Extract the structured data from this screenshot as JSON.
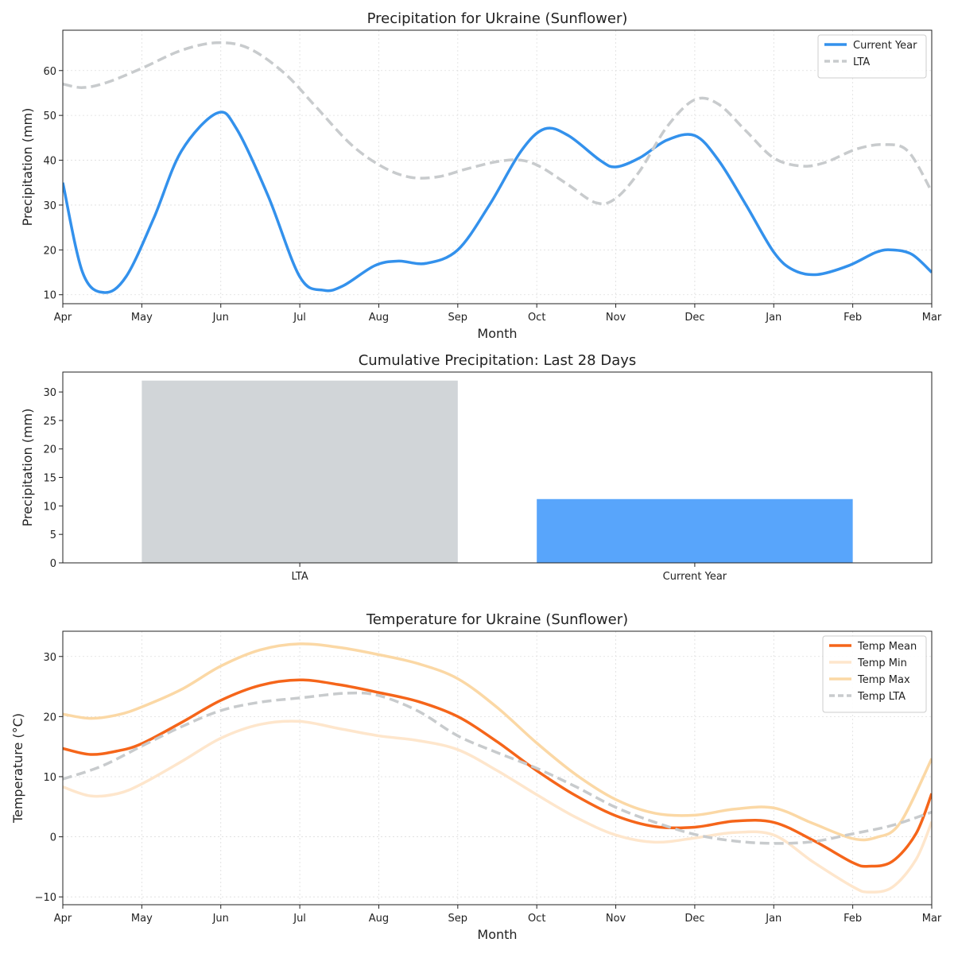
{
  "chart_data": [
    {
      "type": "line",
      "title": "Precipitation for Ukraine (Sunflower)",
      "xlabel": "Month",
      "ylabel": "Precipitation (mm)",
      "x_ticks": [
        "Apr",
        "May",
        "Jun",
        "Jul",
        "Aug",
        "Sep",
        "Oct",
        "Nov",
        "Dec",
        "Jan",
        "Feb",
        "Mar"
      ],
      "xlim": [
        0,
        11
      ],
      "ylim": [
        8,
        69
      ],
      "y_ticks": [
        10,
        20,
        30,
        40,
        50,
        60
      ],
      "grid": true,
      "legend": "top-right",
      "series": [
        {
          "name": "Current Year",
          "color": "#3391ec",
          "dash": false,
          "points": [
            [
              0,
              35
            ],
            [
              0.25,
              15
            ],
            [
              0.52,
              10.5
            ],
            [
              0.8,
              14
            ],
            [
              1.15,
              27
            ],
            [
              1.5,
              42
            ],
            [
              1.95,
              50.5
            ],
            [
              2.2,
              47
            ],
            [
              2.6,
              32
            ],
            [
              3.0,
              14
            ],
            [
              3.3,
              11
            ],
            [
              3.55,
              12
            ],
            [
              3.95,
              16.5
            ],
            [
              4.25,
              17.5
            ],
            [
              4.6,
              17
            ],
            [
              5.0,
              20
            ],
            [
              5.4,
              30
            ],
            [
              5.8,
              42
            ],
            [
              6.1,
              47
            ],
            [
              6.4,
              45.5
            ],
            [
              6.8,
              40
            ],
            [
              7.0,
              38.5
            ],
            [
              7.3,
              40.5
            ],
            [
              7.65,
              44.5
            ],
            [
              8.0,
              45.5
            ],
            [
              8.3,
              40
            ],
            [
              8.65,
              30
            ],
            [
              9.0,
              19.5
            ],
            [
              9.25,
              15.5
            ],
            [
              9.55,
              14.5
            ],
            [
              9.95,
              16.5
            ],
            [
              10.3,
              19.5
            ],
            [
              10.5,
              20
            ],
            [
              10.75,
              19
            ],
            [
              11.0,
              15
            ]
          ]
        },
        {
          "name": "LTA",
          "color": "#c8cbcd",
          "dash": true,
          "points": [
            [
              0,
              57
            ],
            [
              0.25,
              56.2
            ],
            [
              0.55,
              57.3
            ],
            [
              1.0,
              60.5
            ],
            [
              1.5,
              64.5
            ],
            [
              1.95,
              66.2
            ],
            [
              2.35,
              65
            ],
            [
              2.8,
              59.5
            ],
            [
              3.2,
              52
            ],
            [
              3.65,
              43.5
            ],
            [
              4.05,
              38.5
            ],
            [
              4.4,
              36.2
            ],
            [
              4.75,
              36.3
            ],
            [
              5.1,
              38
            ],
            [
              5.5,
              39.7
            ],
            [
              5.8,
              40
            ],
            [
              6.05,
              38.5
            ],
            [
              6.4,
              34.5
            ],
            [
              6.75,
              30.5
            ],
            [
              7.0,
              31.5
            ],
            [
              7.3,
              37.5
            ],
            [
              7.65,
              47.5
            ],
            [
              8.0,
              53.5
            ],
            [
              8.3,
              52.5
            ],
            [
              8.65,
              46.5
            ],
            [
              9.0,
              40.5
            ],
            [
              9.35,
              38.7
            ],
            [
              9.65,
              39.5
            ],
            [
              10.05,
              42.5
            ],
            [
              10.4,
              43.5
            ],
            [
              10.7,
              42
            ],
            [
              11.0,
              33
            ]
          ]
        }
      ]
    },
    {
      "type": "bar",
      "title": "Cumulative Precipitation: Last 28 Days",
      "xlabel": "",
      "ylabel": "Precipitation (mm)",
      "categories": [
        "LTA",
        "Current Year"
      ],
      "values": [
        32,
        11.2
      ],
      "colors": [
        "#d1d5d8",
        "#58a5fb"
      ],
      "ylim": [
        0,
        33.5
      ],
      "y_ticks": [
        0,
        5,
        10,
        15,
        20,
        25,
        30
      ]
    },
    {
      "type": "line",
      "title": "Temperature for Ukraine (Sunflower)",
      "xlabel": "Month",
      "ylabel": "Temperature (°C)",
      "x_ticks": [
        "Apr",
        "May",
        "Jun",
        "Jul",
        "Aug",
        "Sep",
        "Oct",
        "Nov",
        "Dec",
        "Jan",
        "Feb",
        "Mar"
      ],
      "xlim": [
        0,
        11
      ],
      "ylim": [
        -11.3,
        34.2
      ],
      "y_ticks": [
        -10,
        0,
        10,
        20,
        30
      ],
      "grid": true,
      "legend": "top-right",
      "series": [
        {
          "name": "Temp Mean",
          "color": "#f5651a",
          "dash": false,
          "points": [
            [
              0,
              14.7
            ],
            [
              0.35,
              13.7
            ],
            [
              0.7,
              14.3
            ],
            [
              1.0,
              15.5
            ],
            [
              1.5,
              19
            ],
            [
              2.0,
              22.7
            ],
            [
              2.5,
              25.2
            ],
            [
              3.0,
              26.1
            ],
            [
              3.5,
              25.3
            ],
            [
              4.0,
              24
            ],
            [
              4.5,
              22.5
            ],
            [
              5.0,
              20
            ],
            [
              5.5,
              15.8
            ],
            [
              6.0,
              11
            ],
            [
              6.5,
              6.8
            ],
            [
              7.0,
              3.5
            ],
            [
              7.5,
              1.7
            ],
            [
              8.0,
              1.6
            ],
            [
              8.5,
              2.6
            ],
            [
              9.0,
              2.4
            ],
            [
              9.5,
              -0.6
            ],
            [
              10.0,
              -4.3
            ],
            [
              10.2,
              -4.9
            ],
            [
              10.5,
              -4.1
            ],
            [
              10.8,
              0.5
            ],
            [
              11.0,
              7.2
            ]
          ]
        },
        {
          "name": "Temp Min",
          "color": "#fee6cc",
          "dash": false,
          "points": [
            [
              0,
              8.3
            ],
            [
              0.35,
              6.8
            ],
            [
              0.7,
              7.2
            ],
            [
              1.0,
              8.8
            ],
            [
              1.5,
              12.5
            ],
            [
              2.0,
              16.4
            ],
            [
              2.5,
              18.7
            ],
            [
              3.0,
              19.2
            ],
            [
              3.5,
              18
            ],
            [
              4.0,
              16.8
            ],
            [
              4.5,
              16
            ],
            [
              5.0,
              14.5
            ],
            [
              5.5,
              11
            ],
            [
              6.0,
              7
            ],
            [
              6.5,
              3.2
            ],
            [
              7.0,
              0.3
            ],
            [
              7.5,
              -0.9
            ],
            [
              8.0,
              -0.2
            ],
            [
              8.5,
              0.7
            ],
            [
              9.0,
              0.3
            ],
            [
              9.5,
              -4.2
            ],
            [
              10.0,
              -8.3
            ],
            [
              10.2,
              -9.2
            ],
            [
              10.5,
              -8.4
            ],
            [
              10.8,
              -3.8
            ],
            [
              11.0,
              2.5
            ]
          ]
        },
        {
          "name": "Temp Max",
          "color": "#fbd8a5",
          "dash": false,
          "points": [
            [
              0,
              20.4
            ],
            [
              0.35,
              19.7
            ],
            [
              0.7,
              20.3
            ],
            [
              1.0,
              21.6
            ],
            [
              1.5,
              24.5
            ],
            [
              2.0,
              28.4
            ],
            [
              2.5,
              31.1
            ],
            [
              3.0,
              32.1
            ],
            [
              3.5,
              31.5
            ],
            [
              4.0,
              30.3
            ],
            [
              4.5,
              28.8
            ],
            [
              5.0,
              26.3
            ],
            [
              5.5,
              21.5
            ],
            [
              6.0,
              15.6
            ],
            [
              6.5,
              10.3
            ],
            [
              7.0,
              6.2
            ],
            [
              7.5,
              3.9
            ],
            [
              8.0,
              3.6
            ],
            [
              8.5,
              4.6
            ],
            [
              9.0,
              4.8
            ],
            [
              9.5,
              2.2
            ],
            [
              10.0,
              -0.3
            ],
            [
              10.3,
              -0.1
            ],
            [
              10.6,
              2.3
            ],
            [
              11.0,
              13
            ]
          ]
        },
        {
          "name": "Temp LTA",
          "color": "#c8cbcd",
          "dash": true,
          "points": [
            [
              0,
              9.6
            ],
            [
              0.5,
              11.8
            ],
            [
              1.0,
              15.1
            ],
            [
              1.5,
              18.3
            ],
            [
              2.0,
              21
            ],
            [
              2.5,
              22.4
            ],
            [
              3.0,
              23.1
            ],
            [
              3.6,
              23.9
            ],
            [
              4.0,
              23.5
            ],
            [
              4.5,
              20.9
            ],
            [
              5.0,
              16.8
            ],
            [
              5.5,
              14
            ],
            [
              6.0,
              11.4
            ],
            [
              6.5,
              8.3
            ],
            [
              7.0,
              4.9
            ],
            [
              7.5,
              2.4
            ],
            [
              8.0,
              0.4
            ],
            [
              8.5,
              -0.7
            ],
            [
              9.0,
              -1.1
            ],
            [
              9.5,
              -0.8
            ],
            [
              10.0,
              0.5
            ],
            [
              10.5,
              1.9
            ],
            [
              11.0,
              4.1
            ]
          ]
        }
      ]
    }
  ]
}
